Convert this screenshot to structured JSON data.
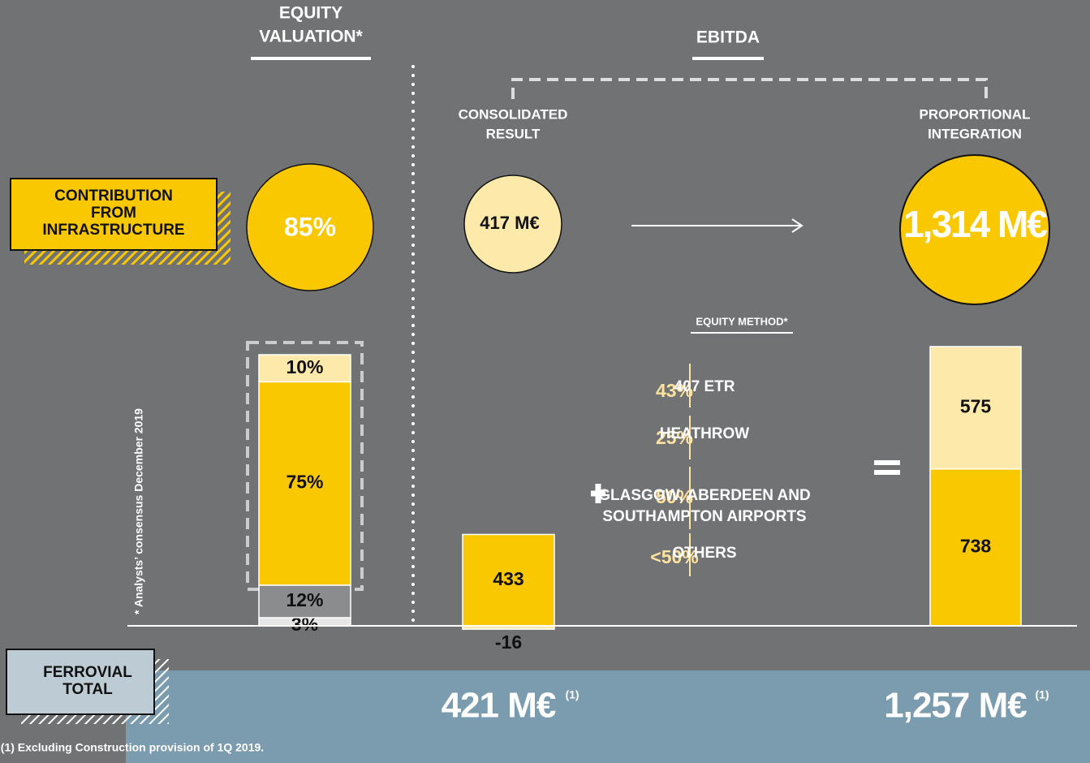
{
  "equity_valuation": {
    "title": [
      "EQUITY",
      "VALUATION*"
    ],
    "circle": "85%",
    "contribution": [
      "CONTRIBUTION",
      "FROM",
      "INFRASTRUCTURE"
    ],
    "note": "* Analysts’ consensus December 2019",
    "values": [
      3,
      12,
      75,
      10
    ],
    "value_labels": [
      "3%",
      "12%",
      "75%",
      "10%"
    ],
    "colors": [
      "#e6e6e6",
      "#8b8c8e",
      "#f9c800",
      "#fde9a9"
    ]
  },
  "ebitda": {
    "title": "EBITDA",
    "consolidated": {
      "label": [
        "CONSOLIDATED",
        "RESULT"
      ],
      "circle": "417 M€",
      "values": [
        433,
        -16
      ],
      "colors": [
        "#f9c800",
        "#fde9a9"
      ]
    },
    "proportional": {
      "label": [
        "PROPORTIONAL",
        "INTEGRATION"
      ],
      "circle": "1,314 M€",
      "values": [
        738,
        575
      ],
      "colors": [
        "#f9c800",
        "#fde9a9"
      ]
    },
    "equity_method": {
      "title": "EQUITY METHOD*",
      "items": [
        {
          "share": "43%",
          "name": [
            "407 ETR"
          ]
        },
        {
          "share": "25%",
          "name": [
            "HEATHROW"
          ]
        },
        {
          "share": "50%",
          "name": [
            "GLASGOW, ABERDEEN AND",
            "SOUTHAMPTON AIRPORTS"
          ]
        },
        {
          "share": "<50%",
          "name": [
            "OTHERS"
          ]
        }
      ]
    }
  },
  "ferrovial_total": {
    "label": [
      "FERROVIAL",
      "TOTAL"
    ],
    "totals": [
      "421 M€",
      "1,257 M€"
    ],
    "superscript": "(1)",
    "footnote": "(1) Excluding Construction provision of 1Q 2019."
  }
}
